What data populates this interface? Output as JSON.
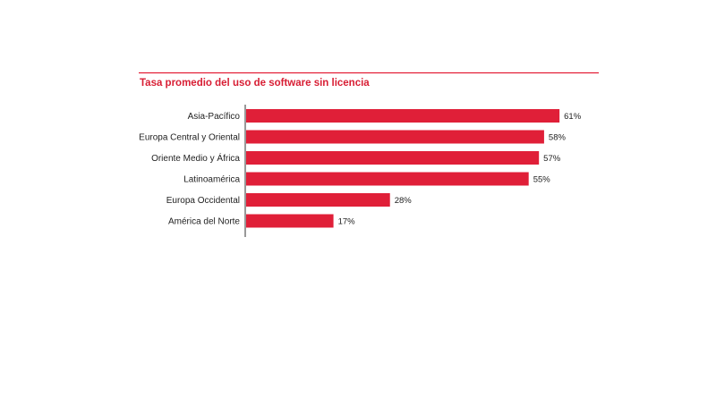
{
  "chart_data": {
    "type": "bar",
    "orientation": "horizontal",
    "title": "Tasa promedio del uso de software sin licencia",
    "xlabel": "",
    "ylabel": "",
    "categories": [
      "Asia-Pacífico",
      "Europa Central y Oriental",
      "Oriente Medio y África",
      "Latinoamérica",
      "Europa Occidental",
      "América del Norte"
    ],
    "values": [
      61,
      58,
      57,
      55,
      28,
      17
    ],
    "value_labels": [
      "61%",
      "58%",
      "57%",
      "55%",
      "28%",
      "17%"
    ],
    "xlim": [
      0,
      65
    ],
    "grid": false,
    "legend": "none",
    "colors": {
      "bar": "#e01f38",
      "title": "#d81e34",
      "rule": "#e0001b",
      "axis": "#333333"
    }
  }
}
